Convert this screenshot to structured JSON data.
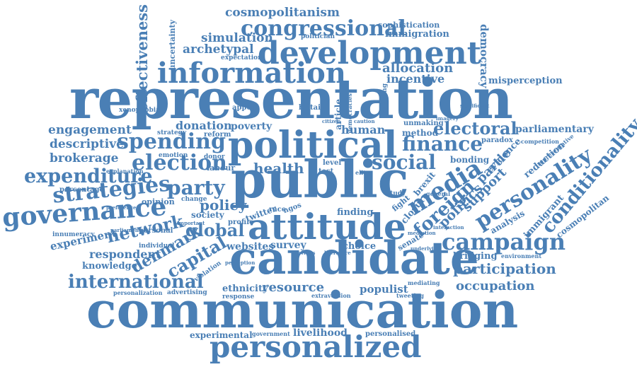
{
  "theme": {
    "word_color": "#4a7fb5",
    "background": "#ffffff"
  },
  "words": {
    "representation": "representation",
    "communication": "communication",
    "candidate": "candidate",
    "public": "public",
    "political": "political",
    "attitude": "attitude",
    "personalized": "personalized",
    "development": "development",
    "information": "information",
    "governance": "governance",
    "campaign": "campaign",
    "spending": "spending",
    "strategies": "strategies",
    "election": "election",
    "international": "international",
    "participation": "participation",
    "personality": "personality",
    "conditionality": "conditionality",
    "congressional": "congressional",
    "cosmopolitanism": "cosmopolitanism",
    "finance": "finance",
    "social": "social",
    "media": "media",
    "foreign": "foreign",
    "party": "party",
    "global": "global",
    "policy": "policy",
    "network": "network",
    "expenditure": "expenditure",
    "engagement": "engagement",
    "descriptive": "descriptive",
    "brokerage": "brokerage",
    "capital": "capital",
    "denmark": "denmark",
    "health": "health",
    "electoral": "electoral",
    "parliamentary": "parliamentary",
    "occupation": "occupation",
    "resource": "resource",
    "populist": "populist",
    "survey": "survey",
    "websites": "websites",
    "simulation": "simulation",
    "archetypal": "archetypal",
    "effectiveness": "effectiveness",
    "allocation": "allocation",
    "incentive": "incentive",
    "immigration": "immigration",
    "sophistication": "sophistication",
    "democracy": "democracy",
    "misperception": "misperception",
    "human": "human",
    "donation": "donation",
    "poverty": "poverty",
    "experiment": "experiment",
    "respondent": "respondent",
    "knowledge": "knowledge",
    "experimental": "experimental",
    "livelihood": "livelihood",
    "personalised": "personalised",
    "advertising": "advertising",
    "personalization": "personalization",
    "ethnicity": "ethnicity",
    "response": "response",
    "extraversion": "extraversion",
    "tweeting": "tweeting",
    "mediating": "mediating",
    "choice": "choice",
    "finding": "finding",
    "bridging": "bridging",
    "environment": "environment",
    "immigrant": "immigrant",
    "cosmopolitan": "cosmopolitan",
    "analysis": "analysis",
    "politics": "politics",
    "support": "support",
    "evidence": "evidence",
    "partie": "partie",
    "reduction": "reduction",
    "representative": "representative",
    "competition": "competition",
    "paradox": "paradox",
    "bonding": "bonding",
    "method": "method",
    "unmaking": "unmaking",
    "imagery": "imagery",
    "significant": "significant",
    "uncertainty": "uncertainty",
    "expectation": "expectation",
    "politician": "politician",
    "article": "article",
    "britain": "britain",
    "appeal": "appeal",
    "xenophobia": "xenophobia",
    "strategy": "strategy",
    "reform": "reform",
    "emotion": "emotion",
    "donor": "donor",
    "labour": "labour",
    "explanation": "explanation",
    "percentage": "percentage",
    "opinion": "opinion",
    "society": "society",
    "innumeracy": "innumeracy",
    "parliament": "parliament",
    "personal": "personal",
    "individual": "individual",
    "violation": "violation",
    "twitter": "twitter",
    "profile": "profile",
    "race": "race",
    "ngos": "ngos",
    "fight": "fight",
    "closure": "closure",
    "brexit": "brexit",
    "study": "study",
    "senate": "senate",
    "level": "level",
    "test": "test",
    "elite": "elite",
    "change": "change",
    "government": "government",
    "preference": "preference",
    "important": "important",
    "perception": "perception",
    "previous": "previous",
    "literature": "literature",
    "interaction": "interaction",
    "underlying": "underlying",
    "general": "general",
    "building": "building",
    "democracies": "democracies",
    "citizen": "citizen",
    "caution": "caution",
    "mediation": "mediation"
  }
}
